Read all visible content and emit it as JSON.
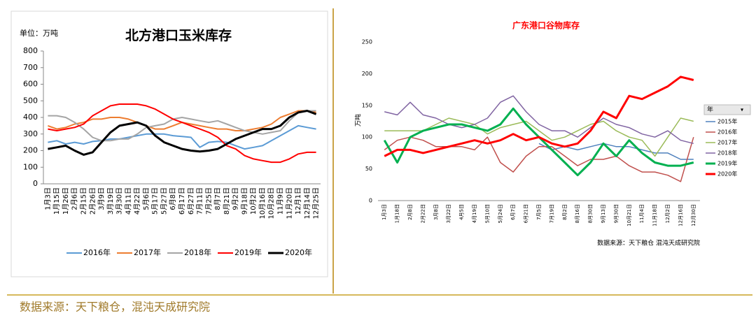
{
  "chart_data": [
    {
      "type": "line",
      "title": "北方港口玉米库存",
      "y_label": "单位：万吨",
      "categories": [
        "1月3日",
        "1月15日",
        "1月26日",
        "2月6日",
        "2月15日",
        "2月26日",
        "3月9日",
        "3月19日",
        "3月30日",
        "4月11日",
        "4月22日",
        "5月6日",
        "5月17日",
        "5月27日",
        "6月8日",
        "6月17日",
        "6月27日",
        "7月11日",
        "7月25日",
        "8月7日",
        "8月21日",
        "9月2日",
        "9月18日",
        "10月2日",
        "10月16日",
        "10月28日",
        "11月9日",
        "11月20日",
        "12月1日",
        "12月14日",
        "12月25日"
      ],
      "ylim": [
        0,
        800
      ],
      "yticks": [
        0,
        100,
        200,
        300,
        400,
        500,
        600,
        700,
        800
      ],
      "legend": "bottom",
      "series": [
        {
          "name": "2016年",
          "color": "#5b9bd5",
          "width": 2,
          "values": [
            250,
            260,
            240,
            250,
            240,
            255,
            260,
            270,
            270,
            280,
            290,
            300,
            300,
            300,
            290,
            285,
            280,
            220,
            250,
            255,
            250,
            230,
            210,
            220,
            230,
            260,
            290,
            320,
            350,
            340,
            330
          ]
        },
        {
          "name": "2017年",
          "color": "#ed7d31",
          "width": 2,
          "values": [
            350,
            330,
            340,
            360,
            370,
            390,
            390,
            400,
            400,
            390,
            370,
            350,
            330,
            330,
            350,
            370,
            360,
            350,
            340,
            330,
            330,
            320,
            320,
            330,
            340,
            360,
            400,
            420,
            440,
            440,
            430
          ]
        },
        {
          "name": "2018年",
          "color": "#a5a5a5",
          "width": 2,
          "values": [
            410,
            410,
            400,
            370,
            330,
            280,
            260,
            260,
            270,
            270,
            300,
            340,
            350,
            360,
            390,
            400,
            390,
            380,
            370,
            380,
            360,
            340,
            320,
            310,
            300,
            310,
            320,
            380,
            430,
            440,
            440
          ]
        },
        {
          "name": "2019年",
          "color": "#ff0000",
          "width": 2,
          "values": [
            330,
            320,
            330,
            340,
            360,
            410,
            440,
            470,
            480,
            480,
            480,
            470,
            450,
            420,
            390,
            370,
            350,
            330,
            310,
            280,
            230,
            210,
            170,
            150,
            140,
            130,
            130,
            150,
            180,
            190,
            190
          ]
        },
        {
          "name": "2020年",
          "color": "#000000",
          "width": 3,
          "values": [
            210,
            220,
            230,
            200,
            175,
            190,
            250,
            310,
            350,
            360,
            370,
            350,
            290,
            250,
            230,
            210,
            200,
            195,
            200,
            210,
            240,
            270,
            290,
            310,
            330,
            330,
            350,
            400,
            430,
            440,
            420
          ]
        }
      ]
    },
    {
      "type": "line",
      "title": "广东港口谷物库存",
      "y_label": "万吨",
      "source": "数据来源：天下粮仓 混沌天成研究院",
      "legend_title": "年",
      "categories": [
        "1月3日",
        "1月18日",
        "2月8日",
        "2月22日",
        "3月8日",
        "3月22日",
        "4月5日",
        "4月19日",
        "5月10日",
        "5月24日",
        "6月7日",
        "6月21日",
        "7月5日",
        "7月19日",
        "8月2日",
        "8月16日",
        "8月30日",
        "9月13日",
        "9月30日",
        "10月21日",
        "11月4日",
        "11月18日",
        "12月2日",
        "12月16日",
        "12月30日"
      ],
      "ylim": [
        0,
        250
      ],
      "yticks": [
        0,
        50,
        100,
        150,
        200,
        250
      ],
      "legend": "right",
      "series": [
        {
          "name": "2015年",
          "color": "#4f81bd",
          "width": 1.5,
          "values": [
            null,
            null,
            null,
            null,
            null,
            null,
            null,
            null,
            null,
            null,
            null,
            null,
            90,
            80,
            85,
            80,
            85,
            90,
            85,
            85,
            80,
            75,
            75,
            65,
            65
          ]
        },
        {
          "name": "2016年",
          "color": "#c0504d",
          "width": 1.5,
          "values": [
            80,
            95,
            100,
            95,
            85,
            85,
            85,
            80,
            100,
            60,
            45,
            70,
            85,
            85,
            70,
            55,
            65,
            65,
            70,
            55,
            45,
            45,
            40,
            30,
            100
          ]
        },
        {
          "name": "2017年",
          "color": "#9bbb59",
          "width": 1.5,
          "values": [
            110,
            110,
            110,
            110,
            120,
            130,
            125,
            120,
            105,
            115,
            120,
            125,
            110,
            95,
            100,
            110,
            120,
            125,
            110,
            100,
            95,
            70,
            100,
            130,
            125
          ]
        },
        {
          "name": "2018年",
          "color": "#8064a2",
          "width": 1.5,
          "values": [
            140,
            135,
            155,
            135,
            130,
            120,
            115,
            120,
            130,
            155,
            165,
            140,
            120,
            110,
            110,
            100,
            115,
            130,
            120,
            115,
            105,
            100,
            110,
            95,
            90
          ]
        },
        {
          "name": "2019年",
          "color": "#00b050",
          "width": 3,
          "values": [
            95,
            60,
            100,
            110,
            115,
            120,
            120,
            115,
            110,
            120,
            145,
            120,
            100,
            80,
            60,
            40,
            60,
            90,
            70,
            95,
            75,
            60,
            55,
            55,
            60
          ]
        },
        {
          "name": "2020年",
          "color": "#ff0000",
          "width": 3,
          "values": [
            70,
            80,
            80,
            75,
            80,
            85,
            90,
            95,
            90,
            95,
            105,
            95,
            100,
            90,
            85,
            90,
            110,
            140,
            130,
            165,
            160,
            170,
            180,
            195,
            190
          ]
        }
      ]
    }
  ],
  "footer": "数据来源：天下粮仓，混沌天成研究院"
}
